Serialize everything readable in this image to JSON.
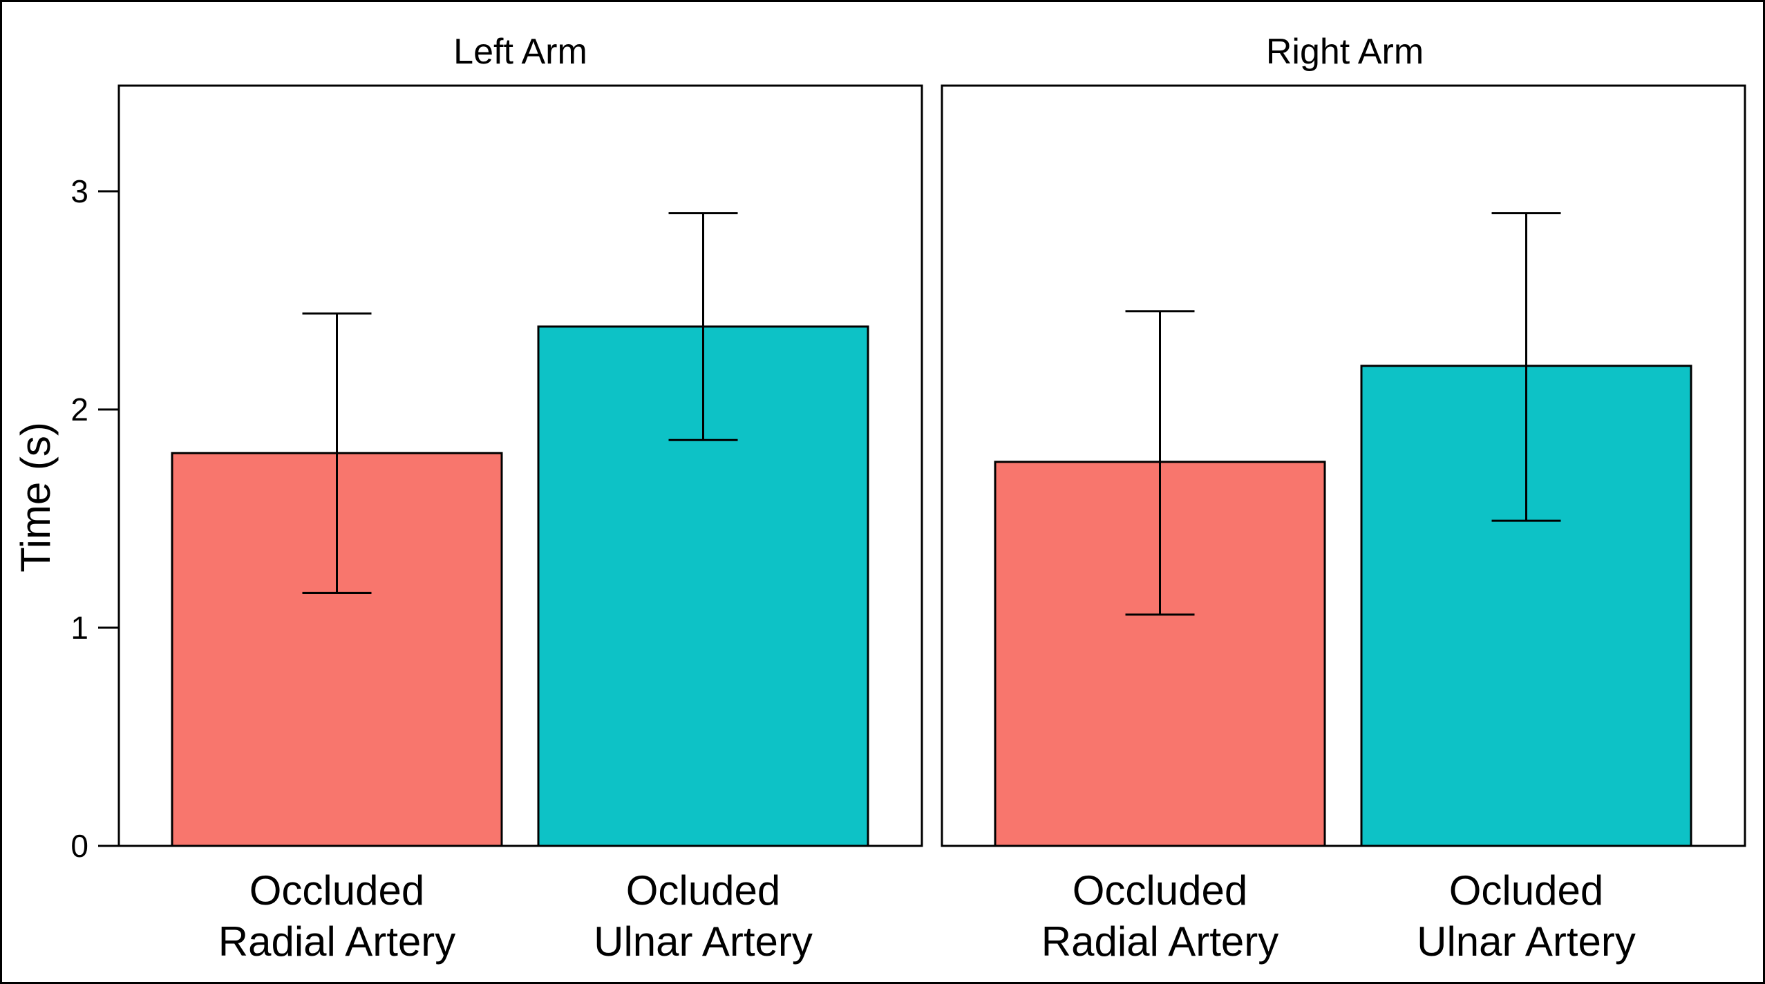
{
  "chart_data": {
    "type": "bar",
    "ylabel": "Time (s)",
    "ylim": [
      0,
      3.5
    ],
    "yticks": [
      0,
      1,
      2,
      3
    ],
    "grid": false,
    "legend": "none",
    "colors": {
      "radial": "#F8766D",
      "ulnar": "#0DC2C6",
      "frame": "#000000"
    },
    "categories": [
      [
        "Occluded",
        "Radial Artery"
      ],
      [
        "Ocluded",
        "Ulnar Artery"
      ]
    ],
    "panels": [
      {
        "title": "Left Arm",
        "bars": [
          {
            "value": 1.8,
            "err_low": 1.16,
            "err_high": 2.44
          },
          {
            "value": 2.38,
            "err_low": 1.86,
            "err_high": 2.9
          }
        ]
      },
      {
        "title": "Right Arm",
        "bars": [
          {
            "value": 1.76,
            "err_low": 1.06,
            "err_high": 2.45
          },
          {
            "value": 2.2,
            "err_low": 1.49,
            "err_high": 2.9
          }
        ]
      }
    ]
  }
}
